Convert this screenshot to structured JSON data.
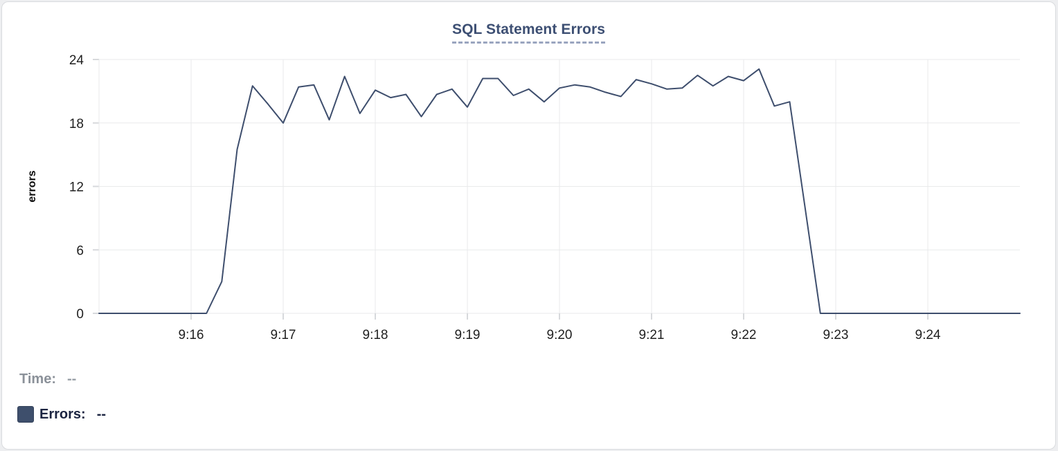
{
  "page": {
    "background_color": "#edeef0",
    "card_border_color": "#d9dbde"
  },
  "chart_data": {
    "type": "line",
    "title": "SQL Statement Errors",
    "xlabel": "",
    "ylabel": "errors",
    "series_name": "Errors",
    "x": [
      "9:15:00",
      "9:15:10",
      "9:15:20",
      "9:15:30",
      "9:15:40",
      "9:15:50",
      "9:16:00",
      "9:16:10",
      "9:16:20",
      "9:16:30",
      "9:16:40",
      "9:16:50",
      "9:17:00",
      "9:17:10",
      "9:17:20",
      "9:17:30",
      "9:17:40",
      "9:17:50",
      "9:18:00",
      "9:18:10",
      "9:18:20",
      "9:18:30",
      "9:18:40",
      "9:18:50",
      "9:19:00",
      "9:19:10",
      "9:19:20",
      "9:19:30",
      "9:19:40",
      "9:19:50",
      "9:20:00",
      "9:20:10",
      "9:20:20",
      "9:20:30",
      "9:20:40",
      "9:20:50",
      "9:21:00",
      "9:21:10",
      "9:21:20",
      "9:21:30",
      "9:21:40",
      "9:21:50",
      "9:22:00",
      "9:22:10",
      "9:22:20",
      "9:22:30",
      "9:22:40",
      "9:22:50",
      "9:23:00",
      "9:23:10",
      "9:23:20",
      "9:23:30",
      "9:23:40",
      "9:23:50",
      "9:24:00",
      "9:24:10",
      "9:24:20",
      "9:24:30",
      "9:24:40",
      "9:24:50",
      "9:25:00"
    ],
    "values": [
      0,
      0,
      0,
      0,
      0,
      0,
      0,
      0,
      3,
      15.5,
      21.5,
      19.8,
      18,
      21.4,
      21.6,
      18.3,
      22.4,
      18.9,
      21.1,
      20.4,
      20.7,
      18.6,
      20.7,
      21.2,
      19.5,
      22.2,
      22.2,
      20.6,
      21.2,
      20,
      21.3,
      21.6,
      21.4,
      20.9,
      20.5,
      22.1,
      21.7,
      21.2,
      21.3,
      22.5,
      21.5,
      22.4,
      22,
      23.1,
      19.6,
      20,
      10,
      0,
      0,
      0,
      0,
      0,
      0,
      0,
      0,
      0,
      0,
      0,
      0,
      0,
      0
    ],
    "x_tick_labels": [
      "9:16",
      "9:17",
      "9:18",
      "9:19",
      "9:20",
      "9:21",
      "9:22",
      "9:23",
      "9:24"
    ],
    "yticks": [
      0,
      6,
      12,
      18,
      24
    ],
    "ylim": [
      0,
      24
    ],
    "grid": true,
    "legend_position": "bottom-left",
    "line_color": "#3e4e6d",
    "grid_color": "#e9eaeb",
    "tick_mark_color": "#d7d9dc",
    "tick_text_color": "#1f1f1f",
    "axis_label_color": "#0a0a0a",
    "title_color": "#3d4f73",
    "title_underline_color": "#9aa5bf"
  },
  "legend": {
    "time_label": "Time:",
    "time_value": "--",
    "errors_label": "Errors:",
    "errors_value": "--",
    "errors_swatch_color": "#3e4f6c"
  }
}
